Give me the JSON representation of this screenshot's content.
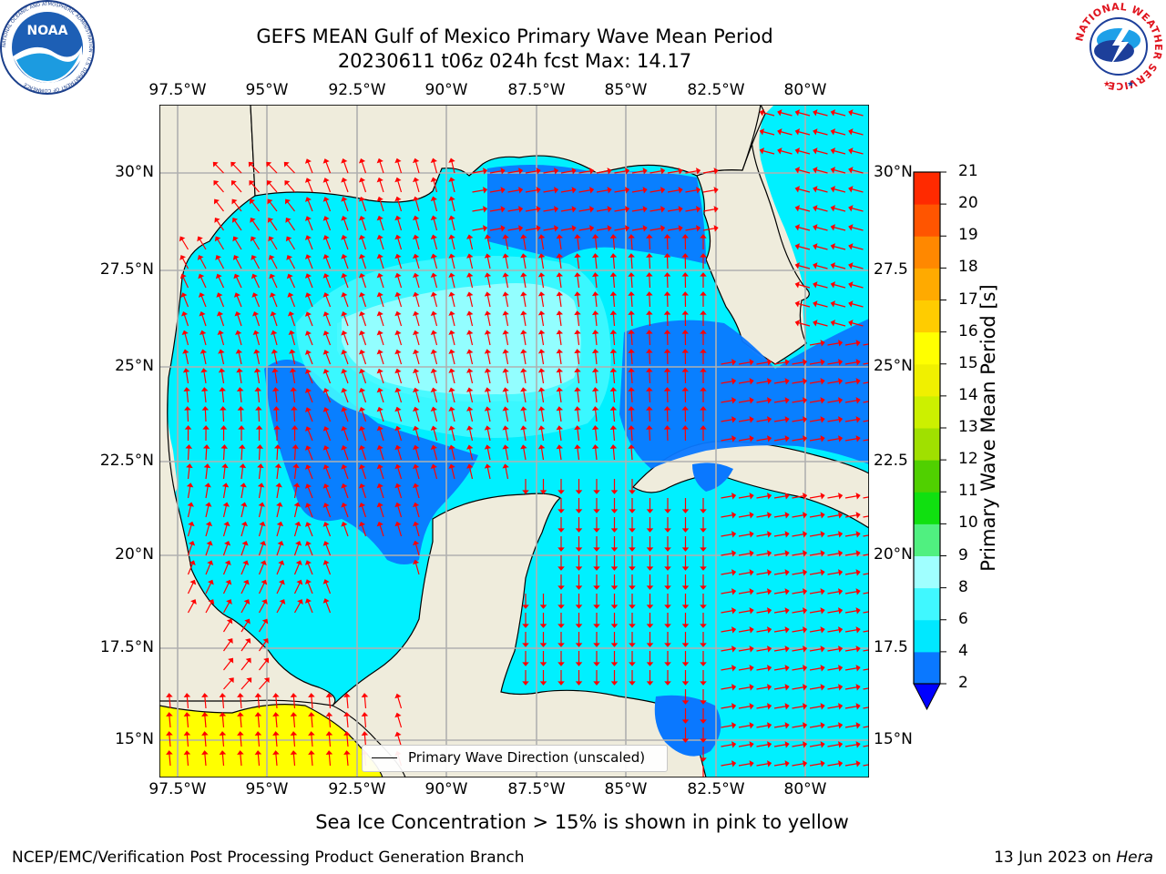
{
  "header": {
    "title_line1": "GEFS MEAN Gulf of Mexico Primary Wave Mean Period",
    "title_line2": "20230611 t06z 024h fcst   Max: 14.17",
    "noaa_logo_text": "NOAA",
    "noaa_ring_text": "NATIONAL OCEANIC AND ATMOSPHERIC ADMINISTRATION · U.S. DEPARTMENT OF COMMERCE",
    "nws_ring_text": "NATIONAL WEATHER SERVICE"
  },
  "map": {
    "lon_labels_top": [
      "97.5°W",
      "95°W",
      "92.5°W",
      "90°W",
      "87.5°W",
      "85°W",
      "82.5°W",
      "80°W"
    ],
    "lon_labels_bottom": [
      "97.5°W",
      "95°W",
      "92.5°W",
      "90°W",
      "87.5°W",
      "85°W",
      "82.5°W",
      "80°W"
    ],
    "lat_labels_left": [
      "30°N",
      "27.5°N",
      "25°N",
      "22.5°N",
      "20°N",
      "17.5°N",
      "15°N"
    ],
    "lat_labels_right": [
      "30°N",
      "27.5",
      "25°N",
      "22.5",
      "20°N",
      "17.5",
      "15°N"
    ],
    "legend_label": "Primary Wave Direction (unscaled)",
    "colors": {
      "land": "#efecdc",
      "arrow": "#ff0000",
      "coast": "#000000",
      "grid": "#b0b0b0"
    }
  },
  "colorbar": {
    "label": "Primary Wave Mean Period [s]",
    "ticks": [
      "2",
      "4",
      "6",
      "8",
      "9",
      "10",
      "11",
      "12",
      "13",
      "14",
      "15",
      "16",
      "17",
      "18",
      "19",
      "20",
      "21"
    ],
    "colors": [
      "#0a78ff",
      "#00e8ff",
      "#40f8ff",
      "#a0ffff",
      "#50f080",
      "#10e010",
      "#50d000",
      "#a0e000",
      "#ccf000",
      "#f0f000",
      "#ffff00",
      "#ffcc00",
      "#ffaa00",
      "#ff8800",
      "#ff5500",
      "#ff2a00"
    ],
    "under_color": "#0000ff"
  },
  "footer": {
    "ice_note": "Sea Ice Concentration > 15% is shown in pink to yellow",
    "credit": "NCEP/EMC/Verification Post Processing Product Generation Branch",
    "date": "13 Jun 2023 on ",
    "machine": "Hera"
  }
}
